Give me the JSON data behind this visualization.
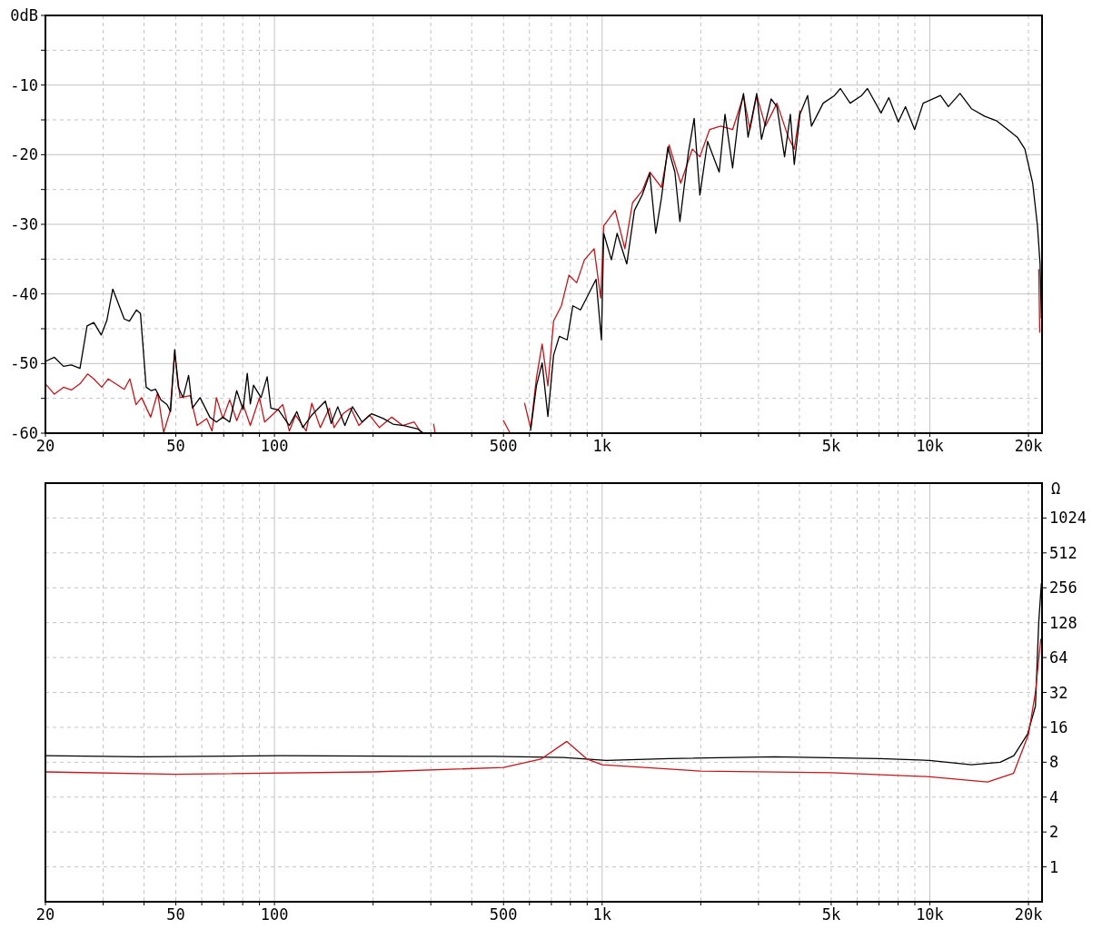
{
  "chart_data": [
    {
      "type": "line",
      "log": "x",
      "grid": true,
      "xlim": [
        20,
        22000
      ],
      "ylim": [
        -60,
        0
      ],
      "xticks": [
        20,
        {
          "value": 30,
          "label": null
        },
        {
          "value": 40,
          "label": null
        },
        50,
        {
          "value": 60,
          "label": null
        },
        {
          "value": 70,
          "label": null
        },
        {
          "value": 80,
          "label": null
        },
        {
          "value": 90,
          "label": null
        },
        100,
        {
          "value": 200,
          "label": null
        },
        {
          "value": 300,
          "label": null
        },
        {
          "value": 400,
          "label": null
        },
        500,
        {
          "value": 600,
          "label": null
        },
        {
          "value": 700,
          "label": null
        },
        {
          "value": 800,
          "label": null
        },
        {
          "value": 900,
          "label": null
        },
        {
          "value": 1000,
          "label": "1k"
        },
        {
          "value": 2000,
          "label": null
        },
        {
          "value": 3000,
          "label": null
        },
        {
          "value": 4000,
          "label": null
        },
        {
          "value": 5000,
          "label": "5k"
        },
        {
          "value": 6000,
          "label": null
        },
        {
          "value": 7000,
          "label": null
        },
        {
          "value": 8000,
          "label": null
        },
        {
          "value": 9000,
          "label": null
        },
        {
          "value": 10000,
          "label": "10k"
        },
        {
          "value": 20000,
          "label": "20k"
        }
      ],
      "yticks": [
        {
          "value": 0,
          "label": "0dB"
        },
        {
          "value": -5,
          "label": null
        },
        -10,
        {
          "value": -15,
          "label": null
        },
        -20,
        {
          "value": -25,
          "label": null
        },
        -30,
        {
          "value": -35,
          "label": null
        },
        -40,
        {
          "value": -45,
          "label": null
        },
        -50,
        {
          "value": -55,
          "label": null
        },
        -60
      ],
      "series": [
        {
          "color": "#c0161b",
          "x": [
            20,
            21.3,
            22.7,
            24,
            25.5,
            26.9,
            28.1,
            29.7,
            31.1,
            34.8,
            36.2,
            37.8,
            39.3,
            41.9,
            44,
            45.9,
            48,
            49.6,
            51.5,
            55.3,
            58.1,
            62.1,
            64.5,
            66.5,
            69.6,
            73,
            76.7,
            80.2,
            84.4,
            90,
            93.3,
            101,
            106,
            111,
            116,
            125,
            130,
            138,
            147,
            152,
            162,
            171,
            181,
            195,
            209,
            228,
            246,
            267,
            280,
            290,
            306,
            309,
            400,
            500,
            521,
            550,
            580,
            605,
            630,
            656,
            683,
            711,
            751,
            792,
            836,
            883,
            945,
            990,
            1011,
            1096,
            1173,
            1238,
            1325,
            1398,
            1516,
            1601,
            1737,
            1884,
            1987,
            2127,
            2300,
            2501,
            2700,
            2825,
            2963,
            3150,
            3415,
            3700,
            3857,
            4015,
            4237,
            4353,
            4726,
            5118,
            5334,
            5713,
            6193,
            6451,
            7099,
            7495,
            8015,
            8427,
            8987,
            9541,
            10780,
            11390,
            12360,
            13400,
            14720,
            15950,
            17300,
            18500,
            19500,
            20600,
            21300,
            21500,
            21650
          ],
          "values": [
            -52.9,
            -54.4,
            -53.4,
            -53.8,
            -52.9,
            -51.5,
            -52.2,
            -53.4,
            -52.2,
            -53.7,
            -52.2,
            -55.9,
            -54.9,
            -57.7,
            -54.2,
            -59.9,
            -56.9,
            -48.5,
            -54.9,
            -54.6,
            -58.9,
            -57.9,
            -59.7,
            -54.9,
            -57.9,
            -55.2,
            -58.2,
            -55.9,
            -58.9,
            -54.9,
            -58.4,
            -56.9,
            -55.9,
            -59.7,
            -57.4,
            -59.7,
            -55.7,
            -59.2,
            -56.4,
            -59.2,
            -57.2,
            -56.4,
            -58.9,
            -57.4,
            -59.2,
            -57.7,
            -58.9,
            -58.4,
            -59.9,
            null,
            -58.7,
            -59.9,
            null,
            -58.2,
            -59.8,
            null,
            -55.7,
            -59.3,
            -52.1,
            -47.2,
            -53.2,
            -43.9,
            -41.7,
            -37.3,
            -38.4,
            -35.1,
            -33.5,
            -40.6,
            -30.2,
            -28,
            -33.5,
            -26.9,
            -25.2,
            -22.5,
            -24.7,
            -18.6,
            -24.1,
            -19.2,
            -20.3,
            -16.4,
            -15.9,
            -16.4,
            -11.5,
            -16.4,
            -11.5,
            -15.9,
            -12.6,
            -17.5,
            -19.2,
            -13.7,
            null,
            null,
            null,
            null,
            null,
            null,
            null,
            null,
            null,
            null,
            null,
            null,
            null,
            null,
            null,
            null,
            null,
            null,
            null,
            null,
            null,
            null,
            null,
            null,
            null,
            -36.5,
            -45.5
          ]
        },
        {
          "color": "#000000",
          "x": [
            20,
            21.3,
            22.7,
            24,
            25.5,
            26.8,
            28.1,
            29.6,
            30.8,
            32.1,
            34.8,
            36.1,
            37.9,
            39,
            40.6,
            42.1,
            43.4,
            45,
            47,
            48.2,
            49.6,
            50.9,
            52.6,
            54.7,
            56.2,
            59.3,
            63.5,
            66.5,
            69.6,
            73,
            76.7,
            80.2,
            82.6,
            84.4,
            86.3,
            91,
            95,
            97.5,
            103,
            111,
            117,
            122,
            130,
            143,
            149,
            156,
            164,
            173,
            185,
            198,
            215,
            230,
            248,
            274,
            283,
            300,
            605,
            630,
            656,
            683,
            711,
            740,
            782,
            814,
            859,
            907,
            958,
            995,
            1011,
            1067,
            1111,
            1189,
            1255,
            1325,
            1398,
            1457,
            1516,
            1587,
            1667,
            1727,
            1833,
            1909,
            1987,
            2098,
            2276,
            2371,
            2501,
            2605,
            2700,
            2788,
            2963,
            3064,
            3279,
            3415,
            3603,
            3753,
            3857,
            4015,
            4237,
            4353,
            4726,
            5118,
            5334,
            5713,
            6193,
            6451,
            7099,
            7495,
            8015,
            8427,
            8987,
            9541,
            10780,
            11390,
            12360,
            13400,
            14720,
            15950,
            17300,
            18500,
            19500,
            20600,
            21300,
            21700,
            21900
          ],
          "values": [
            -49.7,
            -49.1,
            -50.4,
            -50.2,
            -50.7,
            -44.6,
            -44.1,
            -45.9,
            -43.8,
            -39.3,
            -43.6,
            -43.9,
            -42.3,
            -42.8,
            -53.4,
            -53.9,
            -53.7,
            -55.2,
            -55.9,
            -56.9,
            -48,
            -53.4,
            -54.9,
            -51.7,
            -56.4,
            -54.9,
            -57.7,
            -58.4,
            -57.7,
            -58.4,
            -53.9,
            -56.6,
            -51.4,
            -55.8,
            -53.1,
            -54.9,
            -51.9,
            -56.4,
            -56.7,
            -58.9,
            -56.9,
            -59.2,
            -57.4,
            -55.4,
            -58.6,
            -56.2,
            -58.9,
            -56.2,
            -58.4,
            -57.2,
            -57.9,
            -58.7,
            -58.9,
            -59.4,
            -59.9,
            null,
            -59.6,
            -53.2,
            -49.9,
            -57.6,
            -48.8,
            -46.1,
            -46.6,
            -41.7,
            -42.3,
            -40.1,
            -37.9,
            -46.6,
            -31.3,
            -35.1,
            -31.3,
            -35.7,
            -28,
            -25.8,
            -22.7,
            -31.3,
            -26.3,
            -18.9,
            -22.5,
            -29.6,
            -19.7,
            -14.8,
            -25.8,
            -18.1,
            -22.5,
            -14.2,
            -21.9,
            -14.8,
            -11.2,
            -17.5,
            -11.2,
            -17.8,
            -12,
            -13.1,
            -20.3,
            -14.2,
            -21.4,
            -14.2,
            -11.5,
            -15.9,
            -12.6,
            -11.5,
            -10.5,
            -12.6,
            -11.5,
            -10.5,
            -14,
            -11.8,
            -15.3,
            -13.1,
            -16.4,
            -12.6,
            -11.5,
            -13.1,
            -11.2,
            -13.4,
            -14.5,
            -15.1,
            -16.4,
            -17.5,
            -19.2,
            -24.1,
            -30.2,
            -35.7,
            -43.5
          ]
        }
      ]
    },
    {
      "type": "line",
      "log": "xy",
      "grid": true,
      "xlim": [
        20,
        22000
      ],
      "ylim": [
        0.5,
        2048
      ],
      "ylabel": "Ω",
      "xticks": [
        20,
        {
          "value": 30,
          "label": null
        },
        {
          "value": 40,
          "label": null
        },
        50,
        {
          "value": 60,
          "label": null
        },
        {
          "value": 70,
          "label": null
        },
        {
          "value": 80,
          "label": null
        },
        {
          "value": 90,
          "label": null
        },
        100,
        {
          "value": 200,
          "label": null
        },
        {
          "value": 300,
          "label": null
        },
        {
          "value": 400,
          "label": null
        },
        500,
        {
          "value": 600,
          "label": null
        },
        {
          "value": 700,
          "label": null
        },
        {
          "value": 800,
          "label": null
        },
        {
          "value": 900,
          "label": null
        },
        {
          "value": 1000,
          "label": "1k"
        },
        {
          "value": 2000,
          "label": null
        },
        {
          "value": 3000,
          "label": null
        },
        {
          "value": 4000,
          "label": null
        },
        {
          "value": 5000,
          "label": "5k"
        },
        {
          "value": 6000,
          "label": null
        },
        {
          "value": 7000,
          "label": null
        },
        {
          "value": 8000,
          "label": null
        },
        {
          "value": 9000,
          "label": null
        },
        {
          "value": 10000,
          "label": "10k"
        },
        {
          "value": 20000,
          "label": "20k"
        }
      ],
      "yticks": [
        1,
        2,
        4,
        8,
        16,
        32,
        64,
        128,
        256,
        512,
        1024
      ],
      "series": [
        {
          "color": "#000000",
          "x": [
            20,
            39,
            105,
            282,
            468,
            761,
            1030,
            1595,
            3360,
            7060,
            9970,
            13400,
            16400,
            18050,
            19870,
            21000,
            21500,
            21900
          ],
          "values": [
            9.1,
            8.9,
            9.1,
            9,
            9,
            8.8,
            8.3,
            8.6,
            8.9,
            8.6,
            8.3,
            7.6,
            8,
            9.1,
            14,
            24.3,
            130,
            280
          ]
        },
        {
          "color": "#c0161b",
          "x": [
            20,
            50,
            200,
            500,
            650,
            780,
            900,
            1000,
            2000,
            5000,
            10000,
            15000,
            18000,
            20000,
            21000,
            21800
          ],
          "values": [
            6.6,
            6.3,
            6.6,
            7.2,
            8.5,
            12.1,
            8.5,
            7.6,
            6.7,
            6.5,
            6,
            5.4,
            6.4,
            13.9,
            32,
            92
          ]
        }
      ]
    }
  ]
}
